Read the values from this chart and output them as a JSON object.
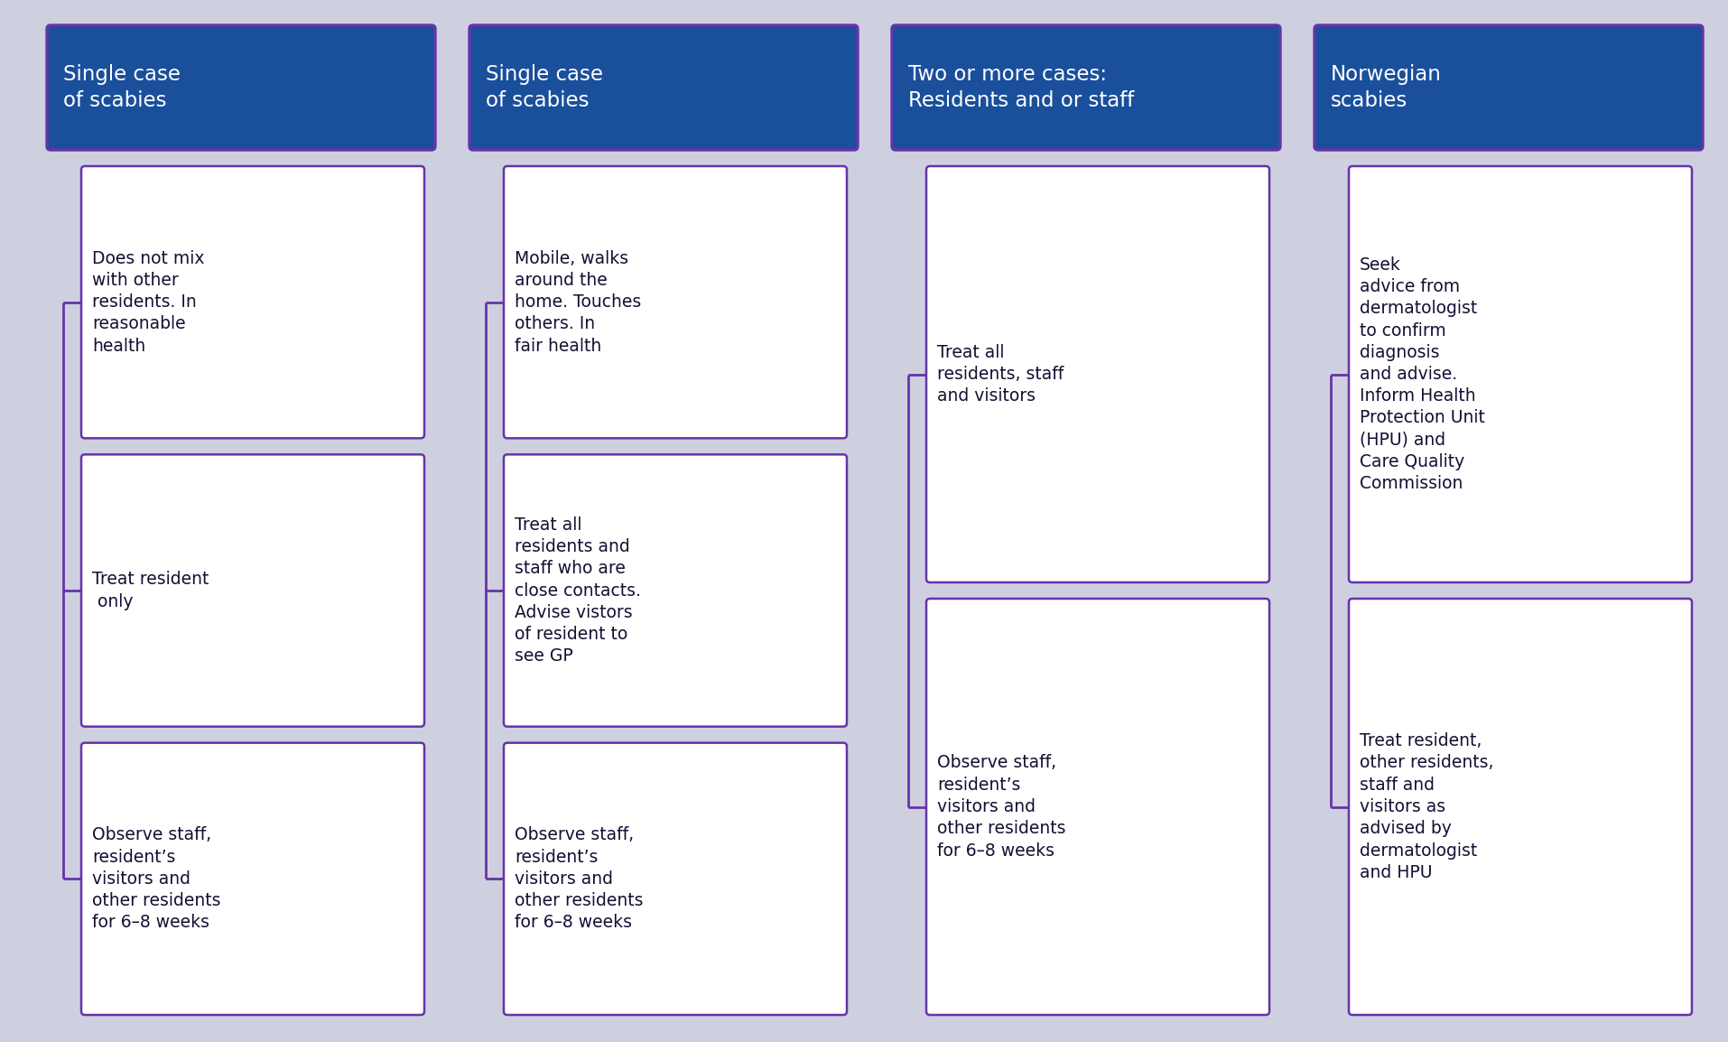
{
  "background_color": "#ced0e0",
  "header_bg": "#1a4f9c",
  "header_text_color": "#ffffff",
  "box_bg": "#ffffff",
  "box_border_color": "#6633aa",
  "connector_color": "#6633aa",
  "text_color": "#111133",
  "header_border_color": "#6633aa",
  "columns": [
    {
      "header": "Single case\nof scabies",
      "boxes": [
        "Does not mix\nwith other\nresidents. In\nreasonable\nhealth",
        "Treat resident\n only",
        "Observe staff,\nresident’s\nvisitors and\nother residents\nfor 6–8 weeks"
      ]
    },
    {
      "header": "Single case\nof scabies",
      "boxes": [
        "Mobile, walks\naround the\nhome. Touches\nothers. In\nfair health",
        "Treat all\nresidents and\nstaff who are\nclose contacts.\nAdvise vistors\nof resident to\nsee GP",
        "Observe staff,\nresident’s\nvisitors and\nother residents\nfor 6–8 weeks"
      ]
    },
    {
      "header": "Two or more cases:\nResidents and or staff",
      "boxes": [
        "Treat all\nresidents, staff\nand visitors",
        "Observe staff,\nresident’s\nvisitors and\nother residents\nfor 6–8 weeks"
      ]
    },
    {
      "header": "Norwegian\nscabies",
      "boxes": [
        "Seek\nadvice from\ndermatologist\nto confirm\ndiagnosis\nand advise.\nInform Health\nProtection Unit\n(HPU) and\nCare Quality\nCommission",
        "Treat resident,\nother residents,\nstaff and\nvisitors as\nadvised by\ndermatologist\nand HPU"
      ]
    }
  ],
  "figsize": [
    19.14,
    11.54
  ],
  "dpi": 100
}
